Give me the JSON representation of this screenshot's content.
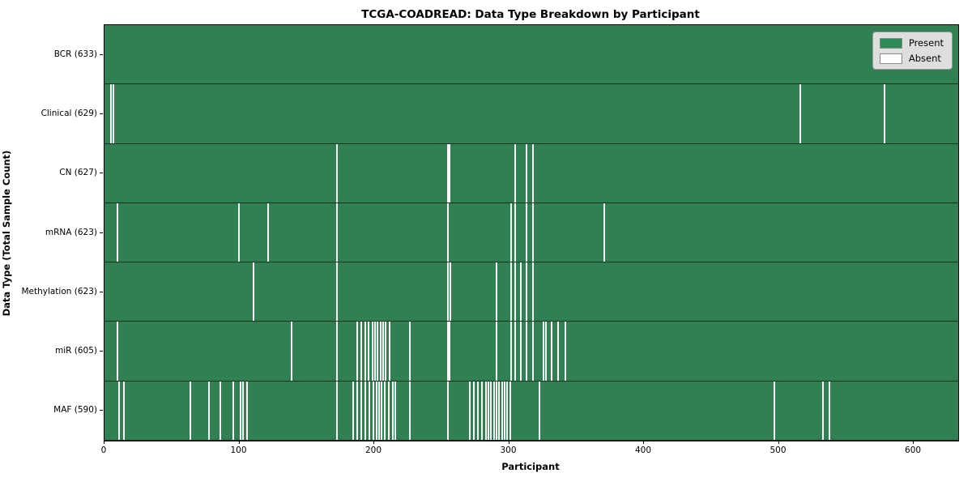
{
  "title": "TCGA-COADREAD: Data Type Breakdown by Participant",
  "chart_data": {
    "type": "heatmap",
    "title": "TCGA-COADREAD: Data Type Breakdown by Participant",
    "xlabel": "Participant",
    "ylabel": "Data Type (Total Sample Count)",
    "x_ticks": [
      0,
      100,
      200,
      300,
      400,
      500,
      600
    ],
    "x_range": [
      0,
      633
    ],
    "n_participants": 633,
    "grid": false,
    "legend_position": "upper right",
    "legend": [
      {
        "label": "Present",
        "color": "#2e8b57"
      },
      {
        "label": "Absent",
        "color": "#ffffff"
      }
    ],
    "colors": {
      "present": "#2e8b57",
      "absent": "#f7f7f7",
      "legend_bg": "#dcdfdc",
      "row_edge": "#000000"
    },
    "rows": [
      {
        "label": "BCR (633)",
        "data_type": "BCR",
        "present_count": 633,
        "absent_participants": []
      },
      {
        "label": "Clinical (629)",
        "data_type": "Clinical",
        "present_count": 629,
        "absent_participants": [
          4,
          6,
          515,
          578
        ]
      },
      {
        "label": "CN (627)",
        "data_type": "CN",
        "present_count": 627,
        "absent_participants": [
          172,
          254,
          255,
          304,
          312,
          317
        ]
      },
      {
        "label": "mRNA (623)",
        "data_type": "mRNA",
        "present_count": 623,
        "absent_participants": [
          9,
          99,
          121,
          172,
          254,
          301,
          304,
          312,
          317,
          370
        ]
      },
      {
        "label": "Methylation (623)",
        "data_type": "Methylation",
        "present_count": 623,
        "absent_participants": [
          110,
          172,
          254,
          256,
          290,
          301,
          304,
          308,
          312,
          317
        ]
      },
      {
        "label": "miR (605)",
        "data_type": "miR",
        "present_count": 605,
        "absent_participants": [
          9,
          138,
          172,
          187,
          190,
          193,
          195,
          198,
          200,
          202,
          204,
          206,
          208,
          211,
          226,
          254,
          255,
          290,
          301,
          304,
          308,
          312,
          317,
          325,
          327,
          331,
          336,
          341
        ]
      },
      {
        "label": "MAF (590)",
        "data_type": "MAF",
        "present_count": 590,
        "absent_participants": [
          10,
          14,
          63,
          77,
          85,
          95,
          100,
          102,
          105,
          172,
          184,
          187,
          190,
          193,
          196,
          199,
          201,
          203,
          205,
          207,
          210,
          213,
          215,
          226,
          254,
          270,
          273,
          276,
          279,
          282,
          284,
          286,
          288,
          290,
          292,
          294,
          296,
          298,
          300,
          322,
          496,
          532,
          537
        ]
      }
    ]
  }
}
